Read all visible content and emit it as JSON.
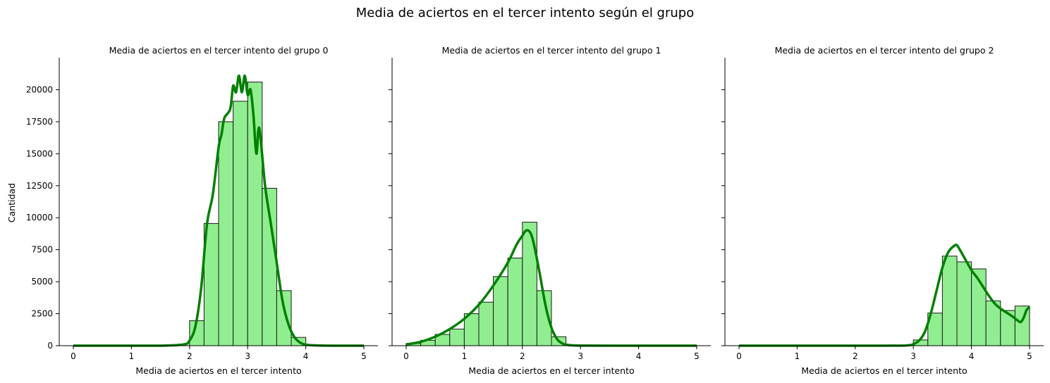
{
  "figure": {
    "title": "Media de aciertos en el tercer intento según el grupo",
    "ylabel": "Cantidad",
    "colors": {
      "bar_fill": "#90ee90",
      "bar_edge": "#1a1a1a",
      "kde": "#008000"
    }
  },
  "chart_data": [
    {
      "type": "bar",
      "title": "Media de aciertos en el tercer intento del grupo 0",
      "xlabel": "Media de aciertos en el tercer intento",
      "ylabel": "Cantidad",
      "xlim": [
        0,
        5
      ],
      "ylim": [
        0,
        22500
      ],
      "xticks": [
        0,
        1,
        2,
        3,
        4,
        5
      ],
      "yticks": [
        0,
        2500,
        5000,
        7500,
        10000,
        12500,
        15000,
        17500,
        20000
      ],
      "bin_width": 0.25,
      "bins": [
        {
          "x0": 2.0,
          "value": 1950
        },
        {
          "x0": 2.25,
          "value": 9550
        },
        {
          "x0": 2.5,
          "value": 17500
        },
        {
          "x0": 2.75,
          "value": 19100
        },
        {
          "x0": 3.0,
          "value": 20600
        },
        {
          "x0": 3.25,
          "value": 12300
        },
        {
          "x0": 3.5,
          "value": 4300
        },
        {
          "x0": 3.75,
          "value": 650
        }
      ],
      "kde": {
        "x": [
          0,
          1,
          1.5,
          1.9,
          2.0,
          2.1,
          2.2,
          2.3,
          2.4,
          2.5,
          2.55,
          2.6,
          2.7,
          2.75,
          2.8,
          2.85,
          2.9,
          2.95,
          3.0,
          3.05,
          3.1,
          3.15,
          3.2,
          3.3,
          3.4,
          3.5,
          3.6,
          3.7,
          3.8,
          3.9,
          4.0,
          4.2,
          4.5,
          5.0
        ],
        "y": [
          0,
          0,
          0,
          100,
          400,
          1500,
          4500,
          9500,
          11800,
          15500,
          16500,
          17800,
          18500,
          20300,
          19800,
          21100,
          19800,
          21100,
          19600,
          20000,
          18000,
          15000,
          17000,
          12500,
          9500,
          6500,
          3500,
          1700,
          700,
          250,
          80,
          20,
          0,
          0
        ]
      }
    },
    {
      "type": "bar",
      "title": "Media de aciertos en el tercer intento del grupo 1",
      "xlabel": "Media de aciertos en el tercer intento",
      "xlim": [
        0,
        5
      ],
      "ylim": [
        0,
        22500
      ],
      "xticks": [
        0,
        1,
        2,
        3,
        4,
        5
      ],
      "bin_width": 0.25,
      "bins": [
        {
          "x0": 0.0,
          "value": 180
        },
        {
          "x0": 0.25,
          "value": 420
        },
        {
          "x0": 0.5,
          "value": 880
        },
        {
          "x0": 0.75,
          "value": 1300
        },
        {
          "x0": 1.0,
          "value": 2500
        },
        {
          "x0": 1.25,
          "value": 3400
        },
        {
          "x0": 1.5,
          "value": 5400
        },
        {
          "x0": 1.75,
          "value": 6850
        },
        {
          "x0": 2.0,
          "value": 9650
        },
        {
          "x0": 2.25,
          "value": 4300
        },
        {
          "x0": 2.5,
          "value": 700
        }
      ],
      "kde": {
        "x": [
          0,
          0.25,
          0.5,
          0.75,
          1.0,
          1.25,
          1.5,
          1.75,
          1.9,
          2.0,
          2.05,
          2.1,
          2.15,
          2.2,
          2.3,
          2.4,
          2.5,
          2.6,
          2.7,
          2.8,
          3.0,
          3.5,
          5.0
        ],
        "y": [
          100,
          300,
          700,
          1300,
          2100,
          3200,
          4700,
          6500,
          7900,
          8600,
          8950,
          9000,
          8700,
          7900,
          5600,
          3100,
          1400,
          500,
          150,
          50,
          10,
          0,
          0
        ]
      }
    },
    {
      "type": "bar",
      "title": "Media de aciertos en el tercer intento del grupo 2",
      "xlabel": "Media de aciertos en el tercer intento",
      "xlim": [
        0,
        5
      ],
      "ylim": [
        0,
        22500
      ],
      "xticks": [
        0,
        1,
        2,
        3,
        4,
        5
      ],
      "bin_width": 0.25,
      "bins": [
        {
          "x0": 3.0,
          "value": 450
        },
        {
          "x0": 3.25,
          "value": 2550
        },
        {
          "x0": 3.5,
          "value": 7000
        },
        {
          "x0": 3.75,
          "value": 6550
        },
        {
          "x0": 4.0,
          "value": 6000
        },
        {
          "x0": 4.25,
          "value": 3500
        },
        {
          "x0": 4.5,
          "value": 2750
        },
        {
          "x0": 4.75,
          "value": 3100
        }
      ],
      "kde": {
        "x": [
          0,
          2.5,
          2.9,
          3.0,
          3.1,
          3.2,
          3.3,
          3.4,
          3.5,
          3.6,
          3.7,
          3.75,
          3.8,
          3.9,
          4.0,
          4.1,
          4.2,
          4.3,
          4.4,
          4.5,
          4.6,
          4.7,
          4.8,
          4.85,
          4.9,
          4.95,
          5.0
        ],
        "y": [
          0,
          0,
          30,
          120,
          400,
          1100,
          2500,
          4300,
          6100,
          7300,
          7800,
          7850,
          7500,
          6700,
          5900,
          5300,
          4600,
          3900,
          3300,
          2900,
          2600,
          2300,
          1950,
          1850,
          2200,
          2800,
          3000
        ]
      }
    }
  ]
}
